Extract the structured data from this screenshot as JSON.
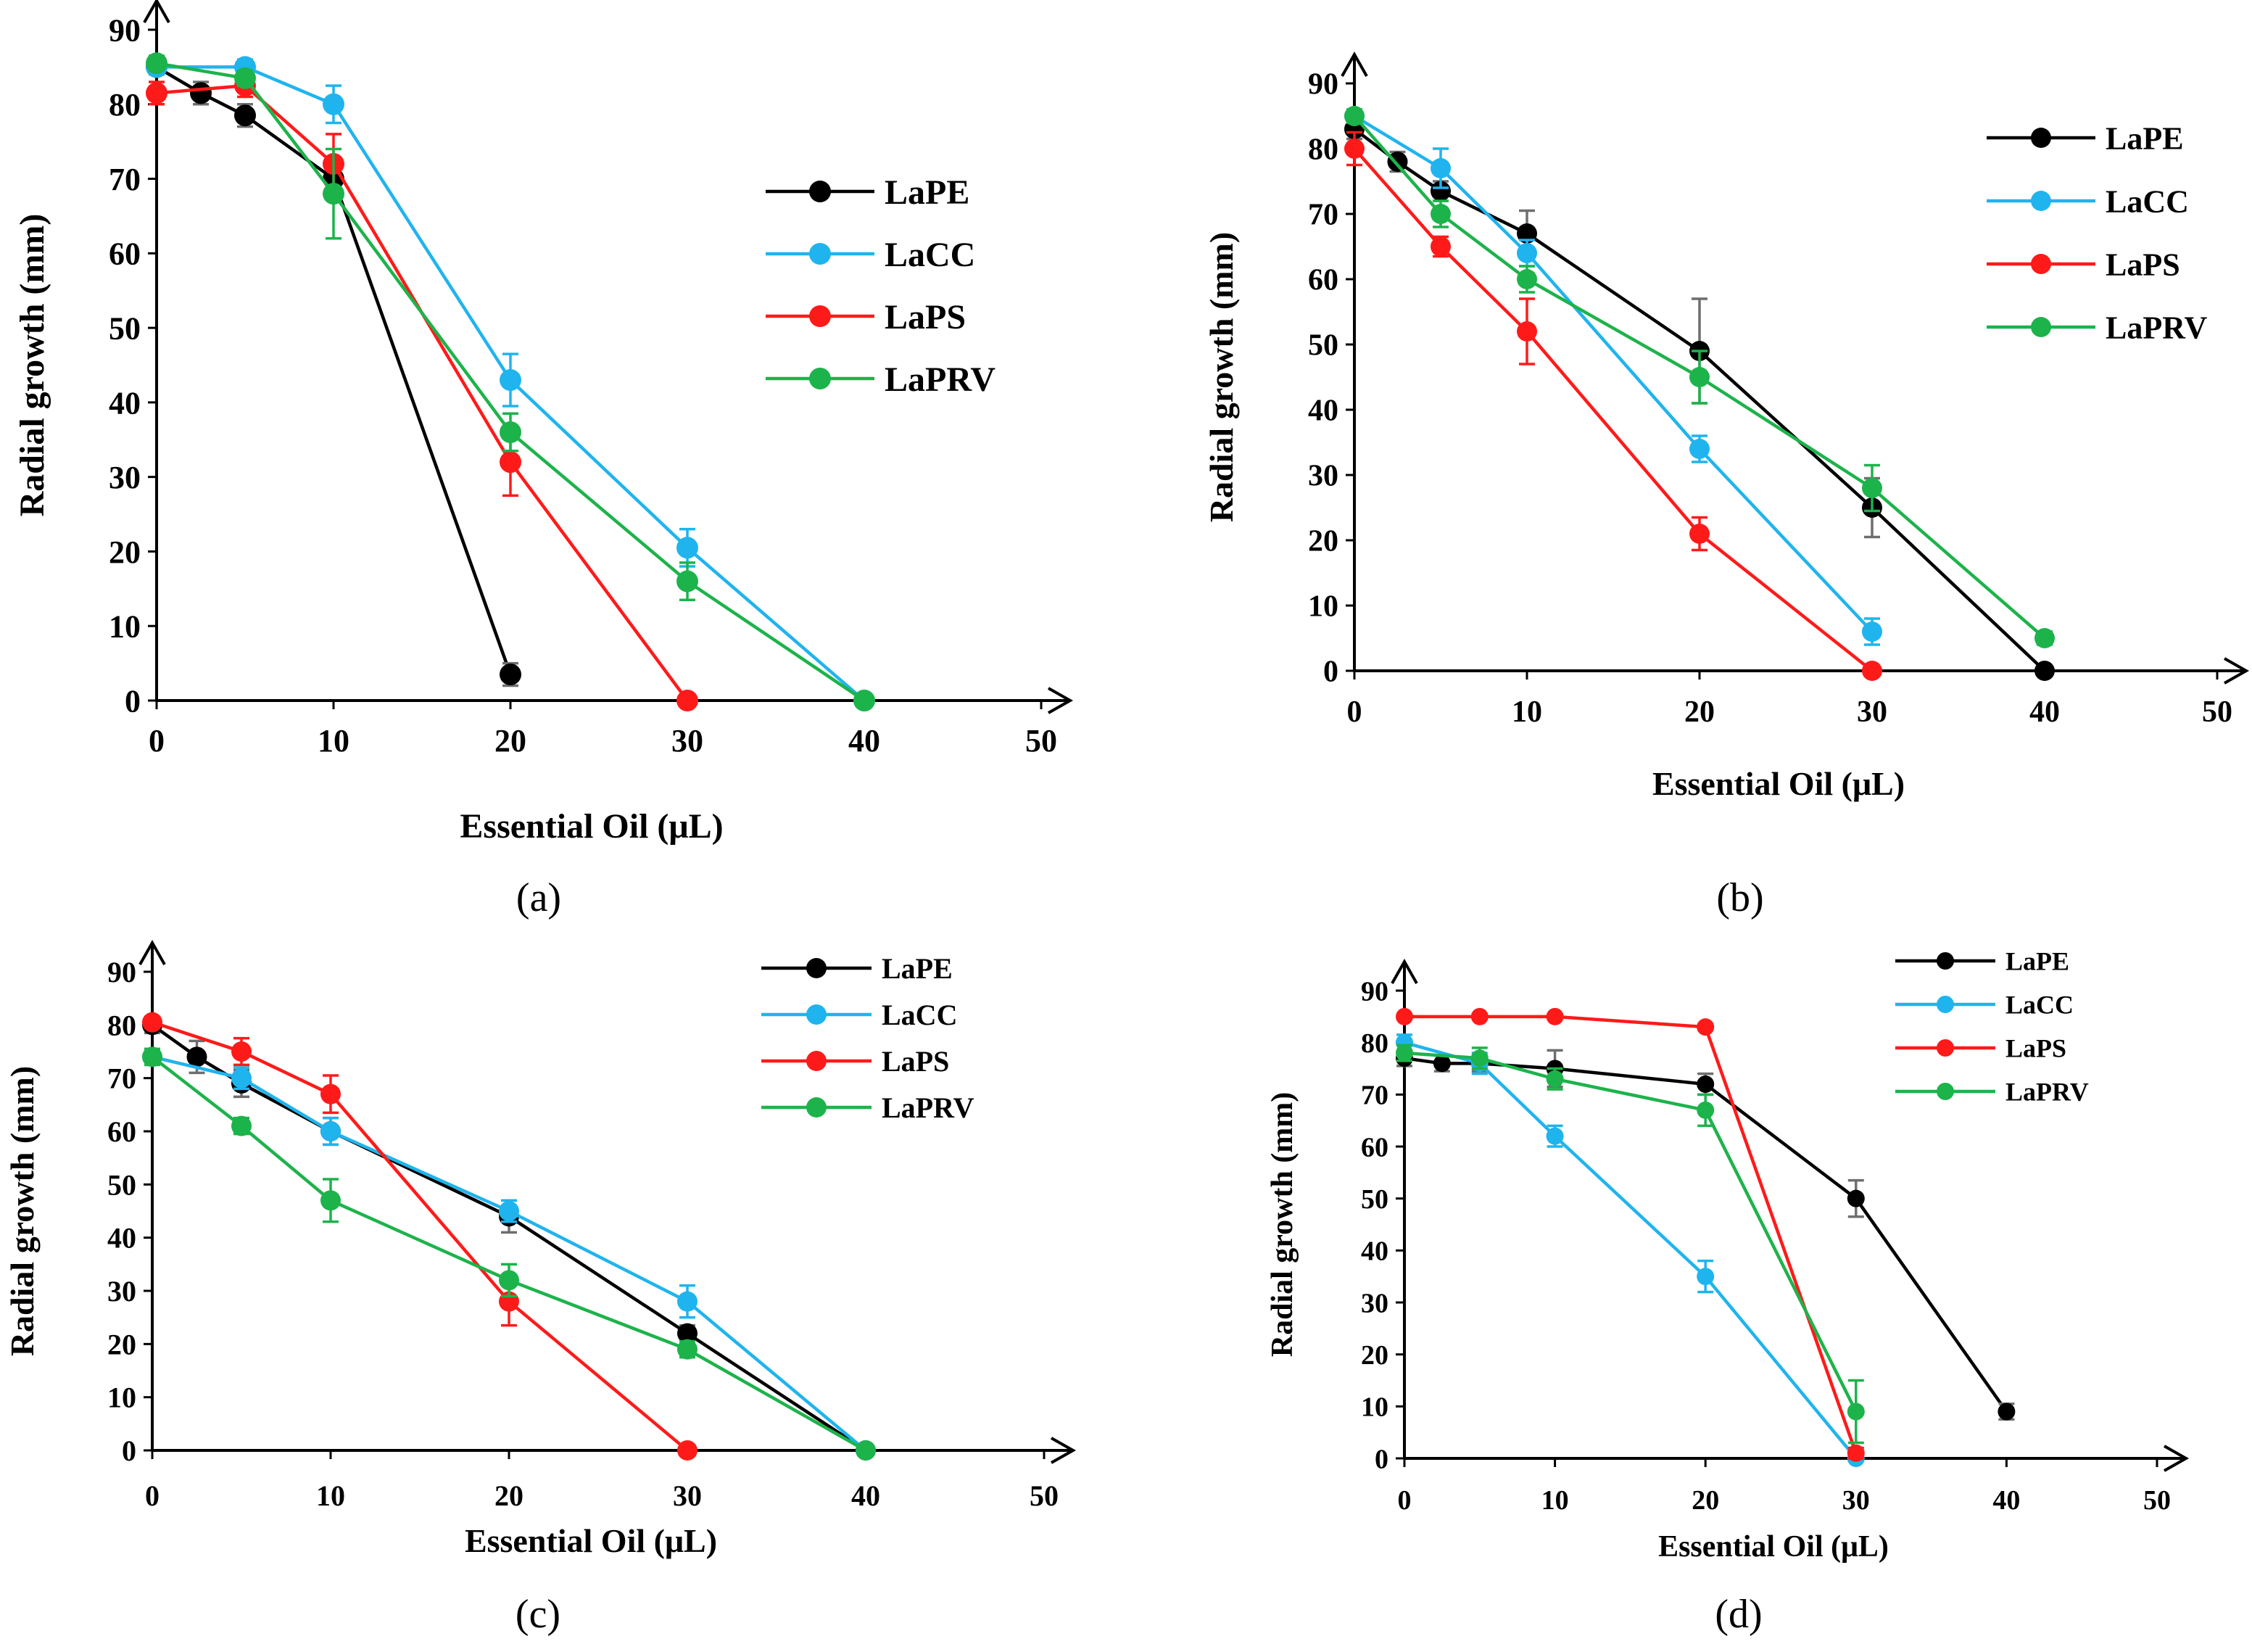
{
  "colors": {
    "LaPE": "#000000",
    "LaCC": "#1fb4ee",
    "LaPS": "#ff1a1a",
    "LaPRV": "#1db34b",
    "axis": "#000000",
    "errorbar_gray": "#6e6e6e"
  },
  "chart_data": [
    {
      "type": "line",
      "panel_label": "(a)",
      "xlabel": "Essential Oil (μL)",
      "ylabel": "Radial growth (mm)",
      "xlim": [
        0,
        50
      ],
      "ylim": [
        0,
        90
      ],
      "xticks": [
        "0",
        "10",
        "20",
        "30",
        "40",
        "50"
      ],
      "yticks": [
        "0",
        "10",
        "20",
        "30",
        "40",
        "50",
        "60",
        "70",
        "80",
        "90"
      ],
      "series": [
        {
          "name": "LaPE",
          "x": [
            0,
            2.5,
            5,
            10,
            20
          ],
          "y": [
            85,
            81.5,
            78.5,
            70,
            3.5
          ],
          "err": [
            1,
            1.5,
            1.5,
            2,
            1.5
          ]
        },
        {
          "name": "LaCC",
          "x": [
            0,
            5,
            10,
            20,
            30,
            40
          ],
          "y": [
            85,
            85,
            80,
            43,
            20.5,
            0
          ],
          "err": [
            1,
            1,
            2.5,
            3.5,
            2.5,
            0
          ]
        },
        {
          "name": "LaPS",
          "x": [
            0,
            5,
            10,
            20,
            30
          ],
          "y": [
            81.5,
            82.5,
            72,
            32,
            0
          ],
          "err": [
            1.5,
            1.5,
            4,
            4.5,
            0
          ]
        },
        {
          "name": "LaPRV",
          "x": [
            0,
            5,
            10,
            20,
            30,
            40
          ],
          "y": [
            85.5,
            83.5,
            68,
            36,
            16,
            0
          ],
          "err": [
            1,
            1,
            6,
            2.5,
            2.5,
            0
          ]
        }
      ]
    },
    {
      "type": "line",
      "panel_label": "(b)",
      "xlabel": "Essential Oil (μL)",
      "ylabel": "Radial growth (mm)",
      "xlim": [
        0,
        50
      ],
      "ylim": [
        0,
        90
      ],
      "xticks": [
        "0",
        "10",
        "20",
        "30",
        "40",
        "50"
      ],
      "yticks": [
        "0",
        "10",
        "20",
        "30",
        "40",
        "50",
        "60",
        "70",
        "80",
        "90"
      ],
      "series": [
        {
          "name": "LaPE",
          "x": [
            0,
            2.5,
            5,
            10,
            20,
            30,
            40
          ],
          "y": [
            83,
            78,
            73.5,
            67,
            49,
            25,
            0
          ],
          "err": [
            1.5,
            1.5,
            1.5,
            3.5,
            8,
            4.5,
            0
          ]
        },
        {
          "name": "LaCC",
          "x": [
            0,
            5,
            10,
            20,
            30
          ],
          "y": [
            85,
            77,
            64,
            34,
            6
          ],
          "err": [
            1,
            3,
            2,
            2,
            2
          ]
        },
        {
          "name": "LaPS",
          "x": [
            0,
            5,
            10,
            20,
            30
          ],
          "y": [
            80,
            65,
            52,
            21,
            0
          ],
          "err": [
            2.5,
            1.5,
            5,
            2.5,
            0
          ]
        },
        {
          "name": "LaPRV",
          "x": [
            0,
            5,
            10,
            20,
            30,
            40
          ],
          "y": [
            85,
            70,
            60,
            45,
            28,
            5
          ],
          "err": [
            1,
            2,
            2,
            4,
            3.5,
            1
          ]
        }
      ]
    },
    {
      "type": "line",
      "panel_label": "(c)",
      "xlabel": "Essential Oil (μL)",
      "ylabel": "Radial growth (mm)",
      "xlim": [
        0,
        50
      ],
      "ylim": [
        0,
        90
      ],
      "xticks": [
        "0",
        "10",
        "20",
        "30",
        "40",
        "50"
      ],
      "yticks": [
        "0",
        "10",
        "20",
        "30",
        "40",
        "50",
        "60",
        "70",
        "80",
        "90"
      ],
      "series": [
        {
          "name": "LaPE",
          "x": [
            0,
            2.5,
            5,
            10,
            20,
            30,
            40
          ],
          "y": [
            80,
            74,
            69,
            60,
            44,
            22,
            0
          ],
          "err": [
            1.5,
            3,
            2.5,
            2.5,
            3,
            1.5,
            0
          ]
        },
        {
          "name": "LaCC",
          "x": [
            0,
            5,
            10,
            20,
            30,
            40
          ],
          "y": [
            74,
            70,
            60,
            45,
            28,
            0
          ],
          "err": [
            1.5,
            2,
            2.5,
            2,
            3,
            0
          ]
        },
        {
          "name": "LaPS",
          "x": [
            0,
            5,
            10,
            20,
            30
          ],
          "y": [
            80.5,
            75,
            67,
            28,
            0
          ],
          "err": [
            1,
            2.5,
            3.5,
            4.5,
            0
          ]
        },
        {
          "name": "LaPRV",
          "x": [
            0,
            5,
            10,
            20,
            30,
            40
          ],
          "y": [
            74,
            61,
            47,
            32,
            19,
            0
          ],
          "err": [
            1.5,
            1.5,
            4,
            3,
            1.5,
            0
          ]
        }
      ]
    },
    {
      "type": "line",
      "panel_label": "(d)",
      "xlabel": "Essential Oil (μL)",
      "ylabel": "Radial growth (mm)",
      "xlim": [
        0,
        50
      ],
      "ylim": [
        0,
        90
      ],
      "xticks": [
        "0",
        "10",
        "20",
        "30",
        "40",
        "50"
      ],
      "yticks": [
        "0",
        "10",
        "20",
        "30",
        "40",
        "50",
        "60",
        "70",
        "80",
        "90"
      ],
      "series": [
        {
          "name": "LaPE",
          "x": [
            0,
            2.5,
            5,
            10,
            20,
            30,
            40
          ],
          "y": [
            77,
            76,
            76,
            75,
            72,
            50,
            9
          ],
          "err": [
            1.5,
            1.5,
            1.5,
            3.5,
            2,
            3.5,
            1.5
          ]
        },
        {
          "name": "LaCC",
          "x": [
            0,
            5,
            10,
            20,
            30
          ],
          "y": [
            80,
            76,
            62,
            35,
            0
          ],
          "err": [
            1.5,
            2,
            2,
            3,
            0
          ]
        },
        {
          "name": "LaPS",
          "x": [
            0,
            5,
            10,
            20,
            30
          ],
          "y": [
            85,
            85,
            85,
            83,
            1
          ],
          "err": [
            0.5,
            0.5,
            0.5,
            0.5,
            1
          ]
        },
        {
          "name": "LaPRV",
          "x": [
            0,
            5,
            10,
            20,
            30
          ],
          "y": [
            78,
            77,
            73,
            67,
            9
          ],
          "err": [
            1.5,
            2,
            2,
            3,
            6
          ]
        }
      ]
    }
  ]
}
